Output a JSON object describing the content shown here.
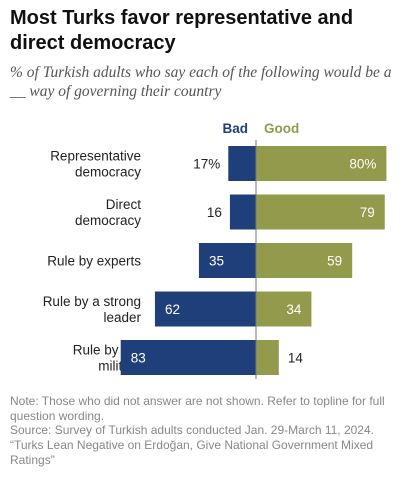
{
  "title": "Most Turks favor representative and direct democracy",
  "subtitle": "% of Turkish adults who say each of the following would be a __ way of governing their country",
  "chart_data": {
    "type": "bar",
    "orientation": "horizontal-diverging",
    "categories": [
      [
        "Representative",
        "democracy"
      ],
      [
        "Direct",
        "democracy"
      ],
      [
        "Rule by experts"
      ],
      [
        "Rule by a strong",
        "leader"
      ],
      [
        "Rule by the",
        "military"
      ]
    ],
    "series": [
      {
        "name": "Bad",
        "values": [
          17,
          16,
          35,
          62,
          83
        ],
        "labels": [
          "17%",
          "16",
          "35",
          "62",
          "83"
        ],
        "color": "#1f3f7a"
      },
      {
        "name": "Good",
        "values": [
          80,
          79,
          59,
          34,
          14
        ],
        "labels": [
          "80%",
          "79",
          "59",
          "34",
          "14"
        ],
        "color": "#949a4c"
      }
    ],
    "xlim": [
      -100,
      100
    ],
    "axis_line_color": "#777777"
  },
  "notes": {
    "note": "Note: Those who did not answer are not shown. Refer to topline for full question wording.",
    "source": "Source: Survey of Turkish adults conducted Jan. 29-March 11, 2024.",
    "report": "“Turks Lean Negative on Erdoğan, Give National Government Mixed Ratings”"
  }
}
